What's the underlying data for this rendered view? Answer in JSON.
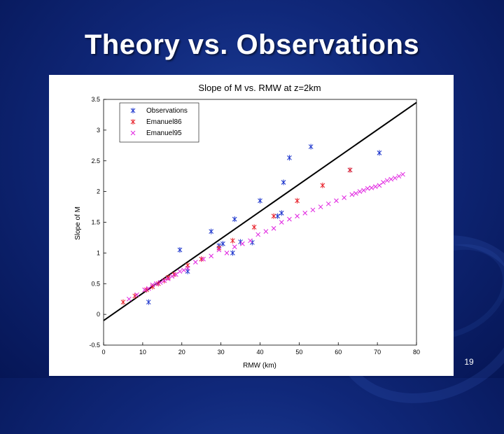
{
  "slide": {
    "title": "Theory vs. Observations",
    "page_number": "19"
  },
  "colors": {
    "background": "#10287a",
    "observations": "#1a33cc",
    "emanuel86": "#e8202a",
    "emanuel95": "#e020e0",
    "fit_line": "#000000"
  },
  "chart_data": {
    "type": "scatter",
    "title": "Slope of M vs. RMW at z=2km",
    "xlabel": "RMW (km)",
    "ylabel": "Slope of M",
    "xlim": [
      0,
      80
    ],
    "ylim": [
      -0.5,
      3.5
    ],
    "xticks": [
      "0",
      "10",
      "20",
      "30",
      "40",
      "50",
      "60",
      "70",
      "80"
    ],
    "yticks": [
      "-0.5",
      "0",
      "0.5",
      "1",
      "1.5",
      "2",
      "2.5",
      "3",
      "3.5"
    ],
    "grid": false,
    "legend_position": "top-left",
    "reference_line": {
      "x": [
        0,
        80
      ],
      "y": [
        -0.1,
        3.45
      ]
    },
    "series": [
      {
        "name": "Observations",
        "marker": "*",
        "x": [
          11.5,
          19.5,
          21.5,
          27.5,
          29.5,
          30.5,
          33,
          33.5,
          35,
          38,
          40,
          44.5,
          45.5,
          46,
          47.5,
          53,
          63,
          70.5
        ],
        "y": [
          0.2,
          1.05,
          0.7,
          1.35,
          1.12,
          1.15,
          1.0,
          1.55,
          1.18,
          1.17,
          1.85,
          1.6,
          1.65,
          2.15,
          2.55,
          2.73,
          2.35,
          2.63
        ]
      },
      {
        "name": "Emanuel86",
        "marker": "*",
        "x": [
          5,
          8,
          11,
          12.5,
          14,
          15.5,
          16.5,
          18,
          21.5,
          25,
          29.5,
          33,
          38.5,
          43.5,
          49.5,
          56,
          63
        ],
        "y": [
          0.2,
          0.3,
          0.4,
          0.45,
          0.5,
          0.55,
          0.6,
          0.65,
          0.8,
          0.9,
          1.08,
          1.2,
          1.42,
          1.6,
          1.85,
          2.1,
          2.35
        ]
      },
      {
        "name": "Emanuel95",
        "marker": "x",
        "x": [
          6.5,
          8.5,
          10.5,
          11.5,
          12.5,
          13.5,
          14.5,
          15.5,
          16.5,
          17.5,
          18.5,
          19.5,
          20.5,
          21.5,
          23.5,
          25.5,
          27.5,
          29.5,
          31.5,
          33.5,
          35.5,
          37.5,
          39.5,
          41.5,
          43.5,
          45.5,
          47.5,
          49.5,
          51.5,
          53.5,
          55.5,
          57.5,
          59.5,
          61.5,
          63.5,
          64.5,
          65.5,
          66.5,
          67.5,
          68.5,
          69.5,
          70.5,
          71.5,
          72.5,
          73.5,
          74.5,
          75.5,
          76.5
        ],
        "y": [
          0.25,
          0.32,
          0.4,
          0.42,
          0.48,
          0.5,
          0.52,
          0.55,
          0.58,
          0.62,
          0.65,
          0.7,
          0.72,
          0.75,
          0.85,
          0.9,
          0.95,
          1.05,
          1.0,
          1.1,
          1.15,
          1.2,
          1.3,
          1.35,
          1.4,
          1.5,
          1.55,
          1.6,
          1.65,
          1.7,
          1.75,
          1.8,
          1.85,
          1.9,
          1.95,
          1.97,
          2.0,
          2.02,
          2.05,
          2.06,
          2.08,
          2.1,
          2.15,
          2.18,
          2.2,
          2.22,
          2.25,
          2.28
        ]
      }
    ]
  }
}
